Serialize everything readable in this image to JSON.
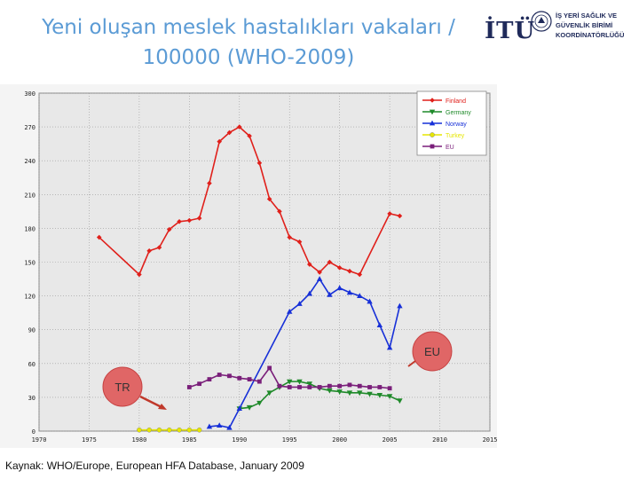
{
  "slide": {
    "title": "Yeni oluşan meslek hastalıkları vakaları / 100000 (WHO-2009)",
    "source": "Kaynak: WHO/Europe, European HFA Database, January 2009"
  },
  "logo": {
    "name": "İTÜ",
    "lines": [
      "İŞ YERİ SAĞLIK VE",
      "GÜVENLİK BİRİMİ",
      "KOORDİNATÖRLÜĞÜ"
    ]
  },
  "colors": {
    "title": "#5b9bd5",
    "plot_bg": "#e8e8e8",
    "callout": "#e06666"
  },
  "callouts": {
    "tr": "TR",
    "eu": "EU"
  },
  "chart_data": {
    "type": "line",
    "title": "",
    "xlabel": "",
    "ylabel": "",
    "xlim": [
      1970,
      2015
    ],
    "ylim": [
      0,
      300
    ],
    "xticks": [
      1970,
      1975,
      1980,
      1985,
      1990,
      1995,
      2000,
      2005,
      2010,
      2015
    ],
    "yticks": [
      0,
      30,
      60,
      90,
      120,
      150,
      180,
      210,
      240,
      270,
      300
    ],
    "grid": true,
    "legend": "top-right",
    "series": [
      {
        "name": "Finland",
        "color": "#e0201b",
        "marker": "diamond",
        "points": [
          [
            1976,
            172
          ],
          [
            1980,
            139
          ],
          [
            1981,
            160
          ],
          [
            1982,
            163
          ],
          [
            1983,
            179
          ],
          [
            1984,
            186
          ],
          [
            1985,
            187
          ],
          [
            1986,
            189
          ],
          [
            1987,
            220
          ],
          [
            1988,
            257
          ],
          [
            1989,
            265
          ],
          [
            1990,
            270
          ],
          [
            1991,
            262
          ],
          [
            1992,
            238
          ],
          [
            1993,
            206
          ],
          [
            1994,
            195
          ],
          [
            1995,
            172
          ],
          [
            1996,
            168
          ],
          [
            1997,
            148
          ],
          [
            1998,
            141
          ],
          [
            1999,
            150
          ],
          [
            2000,
            145
          ],
          [
            2001,
            142
          ],
          [
            2002,
            139
          ],
          [
            2005,
            193
          ],
          [
            2006,
            191
          ]
        ]
      },
      {
        "name": "Germany",
        "color": "#1f8a2a",
        "marker": "triangle-down",
        "points": [
          [
            1990,
            20
          ],
          [
            1991,
            21
          ],
          [
            1992,
            25
          ],
          [
            1993,
            34
          ],
          [
            1994,
            39
          ],
          [
            1995,
            44
          ],
          [
            1996,
            44
          ],
          [
            1997,
            42
          ],
          [
            1998,
            38
          ],
          [
            1999,
            36
          ],
          [
            2000,
            35
          ],
          [
            2001,
            34
          ],
          [
            2002,
            34
          ],
          [
            2003,
            33
          ],
          [
            2004,
            32
          ],
          [
            2005,
            31
          ],
          [
            2006,
            27
          ]
        ]
      },
      {
        "name": "Norway",
        "color": "#1730d8",
        "marker": "triangle-up",
        "points": [
          [
            1987,
            4
          ],
          [
            1988,
            5
          ],
          [
            1989,
            3
          ],
          [
            1990,
            20
          ],
          [
            1995,
            106
          ],
          [
            1996,
            113
          ],
          [
            1997,
            122
          ],
          [
            1998,
            135
          ],
          [
            1999,
            121
          ],
          [
            2000,
            127
          ],
          [
            2001,
            123
          ],
          [
            2002,
            120
          ],
          [
            2003,
            115
          ],
          [
            2004,
            94
          ],
          [
            2005,
            74
          ],
          [
            2006,
            111
          ]
        ]
      },
      {
        "name": "Turkey",
        "color": "#e6e600",
        "marker": "circle",
        "points": [
          [
            1980,
            1
          ],
          [
            1981,
            1
          ],
          [
            1982,
            1
          ],
          [
            1983,
            1
          ],
          [
            1984,
            1
          ],
          [
            1985,
            1
          ],
          [
            1986,
            1
          ]
        ]
      },
      {
        "name": "EU",
        "color": "#7a1f7a",
        "marker": "square",
        "points": [
          [
            1985,
            39
          ],
          [
            1986,
            42
          ],
          [
            1987,
            46
          ],
          [
            1988,
            50
          ],
          [
            1989,
            49
          ],
          [
            1990,
            47
          ],
          [
            1991,
            46
          ],
          [
            1992,
            44
          ],
          [
            1993,
            56
          ],
          [
            1994,
            40
          ],
          [
            1995,
            39
          ],
          [
            1996,
            39
          ],
          [
            1997,
            39
          ],
          [
            1998,
            39
          ],
          [
            1999,
            40
          ],
          [
            2000,
            40
          ],
          [
            2001,
            41
          ],
          [
            2002,
            40
          ],
          [
            2003,
            39
          ],
          [
            2004,
            39
          ],
          [
            2005,
            38
          ]
        ]
      }
    ]
  }
}
